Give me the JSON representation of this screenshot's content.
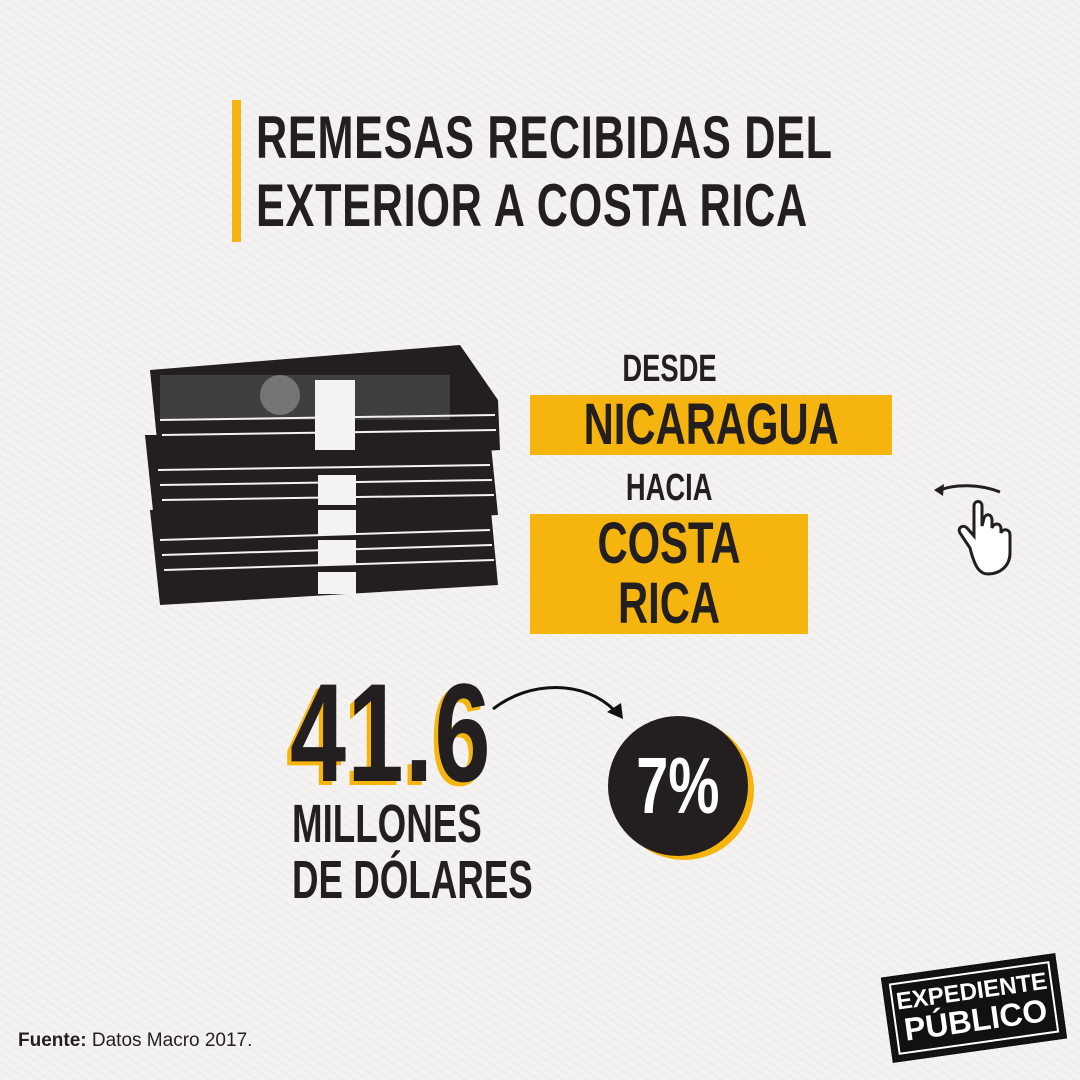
{
  "title": {
    "line1": "REMESAS RECIBIDAS DEL",
    "line2": "EXTERIOR A COSTA RICA"
  },
  "route": {
    "from_label": "DESDE",
    "from": "NICARAGUA",
    "to_label": "HACIA",
    "to": "COSTA RICA"
  },
  "amount": {
    "value": "41.6",
    "unit_line1": "MILLONES",
    "unit_line2": "DE DÓLARES"
  },
  "share": {
    "value": "7%"
  },
  "source": {
    "label": "Fuente:",
    "text": "Datos Macro 2017."
  },
  "logo": {
    "line1": "EXPEDIENTE",
    "line2": "PÚBLICO"
  },
  "icons": {
    "money": "money-stack-icon",
    "swipe": "swipe-hand-icon",
    "arrow": "curved-arrow-icon"
  },
  "colors": {
    "accent": "#f5b50e",
    "dark": "#231f20",
    "background": "#f4f3f1"
  }
}
